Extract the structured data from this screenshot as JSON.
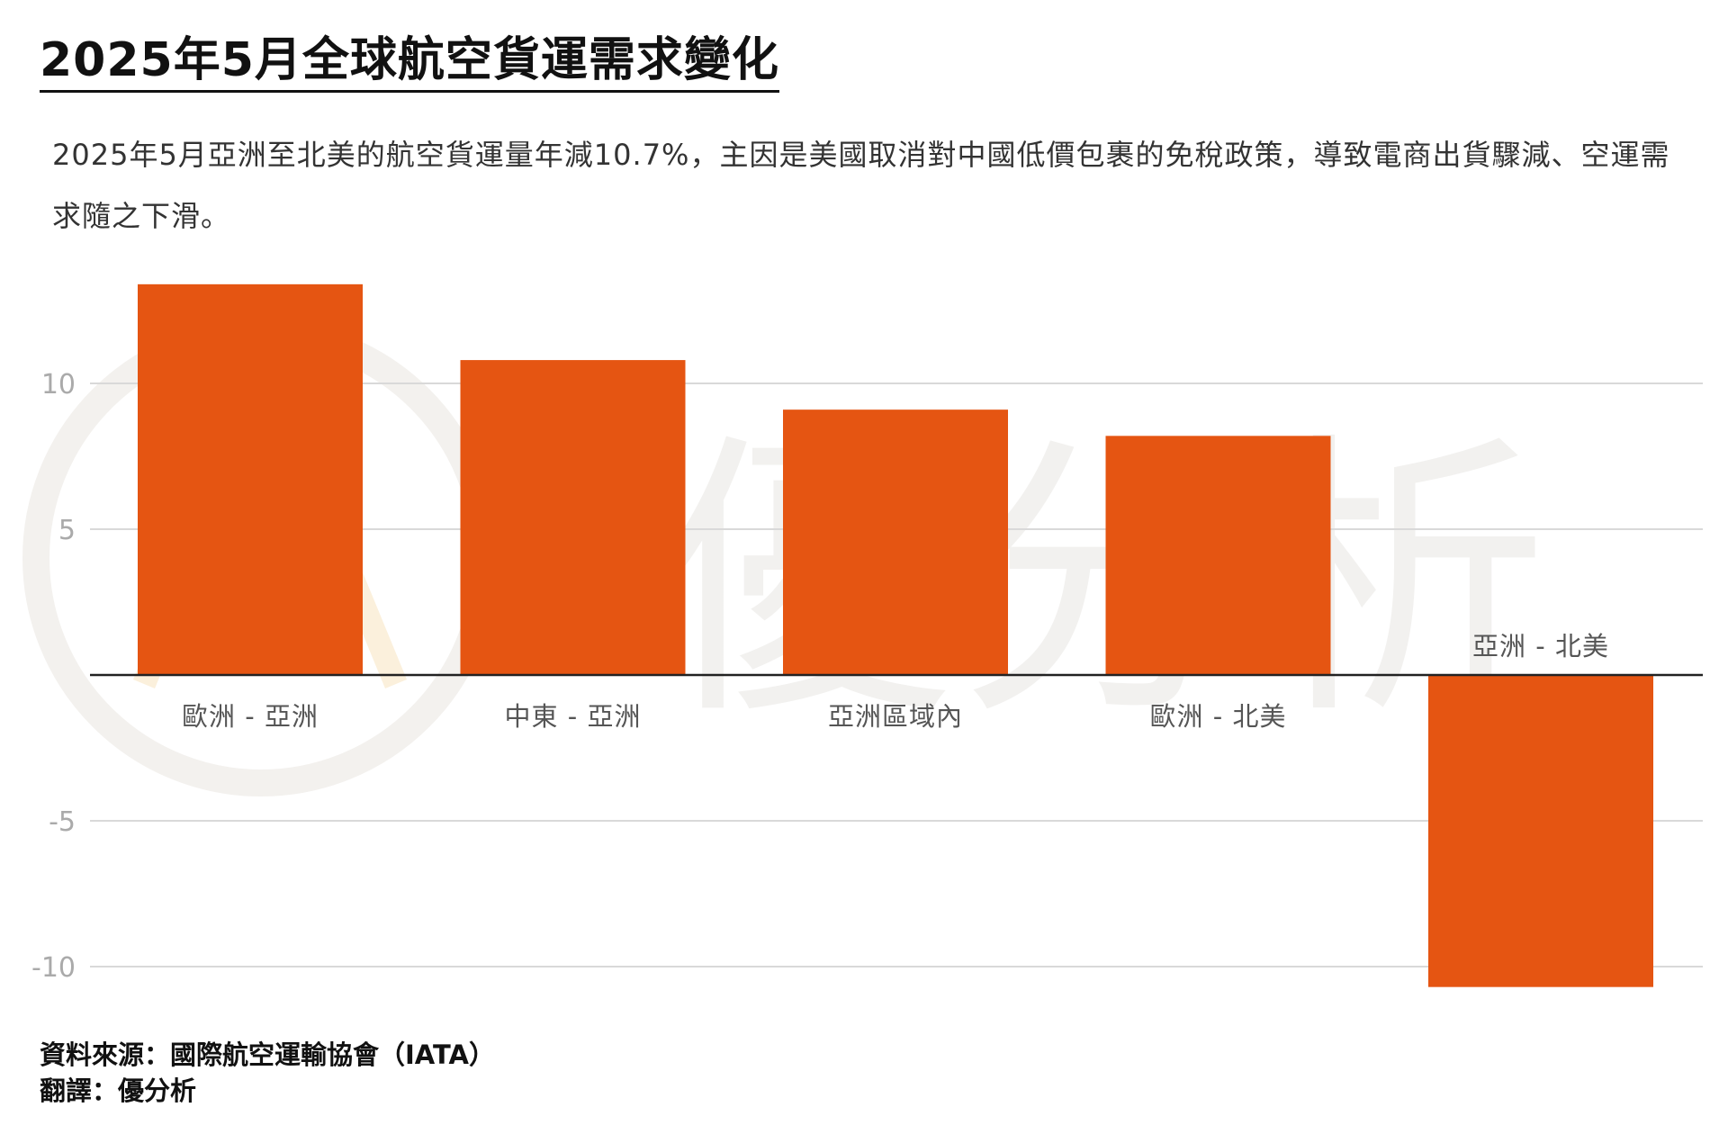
{
  "title": "2025年5月全球航空貨運需求變化",
  "subtitle": "2025年5月亞洲至北美的航空貨運量年減10.7%，主因是美國取消對中國低價包裹的免稅政策，導致電商出貨驟減、空運需求隨之下滑。",
  "watermark": "優分析",
  "footer": {
    "source": "資料來源：國際航空運輸協會（IATA）",
    "translator": "翻譯：優分析"
  },
  "colors": {
    "bar": "#e55512",
    "grid": "#d9d9d9",
    "zero_line": "#222222",
    "watermark_ring": "#f3f1ee",
    "watermark_accent": "#fbf0dc"
  },
  "chart_data": {
    "type": "bar",
    "categories": [
      "歐洲 - 亞洲",
      "中東 - 亞洲",
      "亞洲區域內",
      "歐洲 - 北美",
      "亞洲 - 北美"
    ],
    "values": [
      13.4,
      10.8,
      9.1,
      8.2,
      -10.7
    ],
    "ylim": [
      -12,
      14
    ],
    "yticks": [
      10,
      5,
      -5,
      -10
    ],
    "ytick_labels": [
      "10",
      "5",
      "-5",
      "-10"
    ],
    "grid": true,
    "legend": false
  }
}
